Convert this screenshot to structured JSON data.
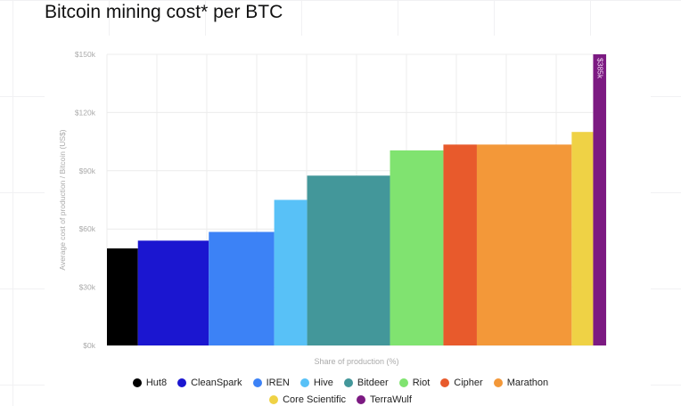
{
  "chart_data": {
    "type": "bar",
    "variant": "variable-width",
    "title": "Bitcoin mining cost* per BTC",
    "xlabel": "Share of production (%)",
    "ylabel": "Average cost of production / Bitcoin (US$)",
    "ylim": [
      0,
      150
    ],
    "yticks": [
      "$0k",
      "$30k",
      "$60k",
      "$90k",
      "$120k",
      "$150k"
    ],
    "grid": true,
    "legend_position": "bottom",
    "series": [
      {
        "name": "Hut8",
        "value": 50,
        "share": 6.2,
        "color": "#000000"
      },
      {
        "name": "CleanSpark",
        "value": 54,
        "share": 14.2,
        "color": "#1b16d0"
      },
      {
        "name": "IREN",
        "value": 58.5,
        "share": 13.1,
        "color": "#3c82f6"
      },
      {
        "name": "Hive",
        "value": 75,
        "share": 6.6,
        "color": "#58c1f7"
      },
      {
        "name": "Bitdeer",
        "value": 87.5,
        "share": 16.6,
        "color": "#43979a"
      },
      {
        "name": "Riot",
        "value": 100.5,
        "share": 10.7,
        "color": "#80e370"
      },
      {
        "name": "Cipher",
        "value": 103.5,
        "share": 6.7,
        "color": "#e85a2c"
      },
      {
        "name": "Marathon",
        "value": 103.5,
        "share": 19.0,
        "color": "#f39839"
      },
      {
        "name": "Core Scientific",
        "value": 110,
        "share": 4.3,
        "color": "#efd245"
      },
      {
        "name": "TerraWulf",
        "value": 385,
        "share": 2.6,
        "color": "#7c1a82",
        "label": "$385k"
      }
    ]
  }
}
